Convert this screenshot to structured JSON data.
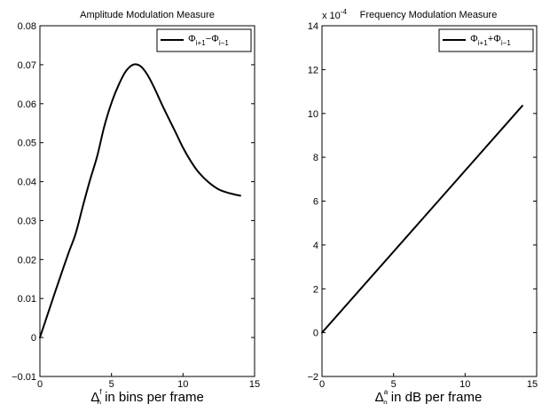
{
  "chart_data": [
    {
      "type": "line",
      "title": "Amplitude Modulation Measure",
      "xlabel": {
        "base": "Δ",
        "sup": "f",
        "sub": "p",
        "text": " in bins per frame"
      },
      "ylabel": "",
      "xlim": [
        0,
        15
      ],
      "ylim": [
        -0.01,
        0.08
      ],
      "xticks": [
        "0",
        "5",
        "10",
        "15"
      ],
      "yticks": [
        "−0.01",
        "0",
        "0.01",
        "0.02",
        "0.03",
        "0.04",
        "0.05",
        "0.06",
        "0.07",
        "0.08"
      ],
      "grid": false,
      "legend_position": "top-right",
      "series": [
        {
          "name": "Φ_{i+1}−Φ_{i−1}",
          "legend": {
            "p1": "Φ",
            "s1": "i+1",
            "op": "−",
            "p2": "Φ",
            "s2": "i−1"
          },
          "color": "#000000",
          "x": [
            0,
            0.5,
            1,
            1.5,
            2,
            2.5,
            3,
            3.5,
            4,
            4.5,
            5,
            5.5,
            6,
            6.5,
            7,
            7.5,
            8,
            8.5,
            9,
            9.5,
            10,
            10.5,
            11,
            11.5,
            12,
            12.5,
            13,
            13.5,
            14
          ],
          "y": [
            0,
            0.0055,
            0.011,
            0.0164,
            0.0217,
            0.0267,
            0.0337,
            0.0404,
            0.0465,
            0.0542,
            0.0602,
            0.0648,
            0.0683,
            0.07,
            0.0697,
            0.0675,
            0.064,
            0.06,
            0.0562,
            0.0525,
            0.0487,
            0.0455,
            0.0428,
            0.0408,
            0.0392,
            0.038,
            0.0373,
            0.0368,
            0.0364
          ]
        }
      ]
    },
    {
      "type": "line",
      "title": "Frequency Modulation Measure",
      "xlabel": {
        "base": "Δ",
        "sup": "a",
        "sub": "p",
        "text": " in dB per frame"
      },
      "ylabel": "",
      "multiplier": {
        "text": "x 10",
        "exp": "-4"
      },
      "xlim": [
        0,
        15
      ],
      "ylim": [
        -2,
        14
      ],
      "xticks": [
        "0",
        "5",
        "10",
        "15"
      ],
      "yticks": [
        "−2",
        "0",
        "2",
        "4",
        "6",
        "8",
        "10",
        "12",
        "14"
      ],
      "grid": false,
      "legend_position": "top-right",
      "series": [
        {
          "name": "Φ_{i+1}+Φ_{i−1}",
          "legend": {
            "p1": "Φ",
            "s1": "i+1",
            "op": "+",
            "p2": "Φ",
            "s2": "i−1"
          },
          "color": "#000000",
          "x": [
            0,
            14
          ],
          "y": [
            0,
            10.35
          ]
        }
      ]
    }
  ]
}
